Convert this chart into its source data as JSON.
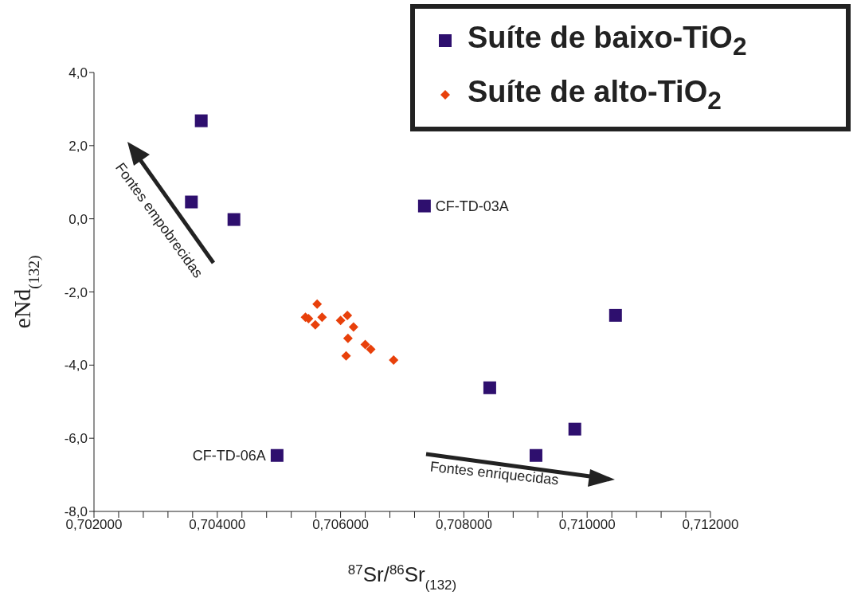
{
  "chart_data": {
    "type": "scatter",
    "xlabel": "$^{87}$Sr/$^{86}$Sr$_{(132)}$",
    "ylabel": "eNd$_{(132)}$",
    "legend": "top right",
    "grid": false,
    "xlim": [
      0.702,
      0.712
    ],
    "ylim": [
      -8,
      4
    ],
    "xticks": [
      {
        "value": 0.702,
        "label": "0,702000"
      },
      {
        "value": 0.7024,
        "label": null
      },
      {
        "value": 0.7028,
        "label": null
      },
      {
        "value": 0.7032,
        "label": null
      },
      {
        "value": 0.7036,
        "label": null
      },
      {
        "value": 0.704,
        "label": "0,704000"
      },
      {
        "value": 0.7044,
        "label": null
      },
      {
        "value": 0.7048,
        "label": null
      },
      {
        "value": 0.7052,
        "label": null
      },
      {
        "value": 0.7056,
        "label": null
      },
      {
        "value": 0.706,
        "label": "0,706000"
      },
      {
        "value": 0.7064,
        "label": null
      },
      {
        "value": 0.7068,
        "label": null
      },
      {
        "value": 0.7072,
        "label": null
      },
      {
        "value": 0.7076,
        "label": null
      },
      {
        "value": 0.708,
        "label": "0,708000"
      },
      {
        "value": 0.7084,
        "label": null
      },
      {
        "value": 0.7088,
        "label": null
      },
      {
        "value": 0.7092,
        "label": null
      },
      {
        "value": 0.7096,
        "label": null
      },
      {
        "value": 0.71,
        "label": "0,710000"
      },
      {
        "value": 0.7104,
        "label": null
      },
      {
        "value": 0.7108,
        "label": null
      },
      {
        "value": 0.7112,
        "label": null
      },
      {
        "value": 0.7116,
        "label": null
      },
      {
        "value": 0.712,
        "label": "0,712000"
      }
    ],
    "yticks": [
      {
        "value": -8,
        "label": "-8,0"
      },
      {
        "value": -6,
        "label": "-6,0"
      },
      {
        "value": -4,
        "label": "-4,0"
      },
      {
        "value": -2,
        "label": "-2,0"
      },
      {
        "value": 0,
        "label": "0,0"
      },
      {
        "value": 2,
        "label": "2,0"
      },
      {
        "value": 4,
        "label": "4,0"
      }
    ],
    "series": [
      {
        "name": "Suíte de baixo-TiO$_{2}$",
        "color": "#2e0f6e",
        "marker": "square",
        "x": [
          0.70374,
          0.70358,
          0.70427,
          0.70736,
          0.71046,
          0.70842,
          0.7098,
          0.70917,
          0.70497
        ],
        "values": [
          2.68,
          0.46,
          -0.02,
          0.35,
          -2.64,
          -4.62,
          -5.75,
          -6.47,
          -6.47
        ]
      },
      {
        "name": "Suíte de alto-TiO$_{2}$",
        "color": "#e8400a",
        "marker": "diamond",
        "x": [
          0.70562,
          0.70543,
          0.70548,
          0.7057,
          0.70559,
          0.70611,
          0.706,
          0.70621,
          0.70612,
          0.7064,
          0.70649,
          0.70609,
          0.70686
        ],
        "values": [
          -2.33,
          -2.69,
          -2.73,
          -2.69,
          -2.9,
          -2.64,
          -2.78,
          -2.96,
          -3.27,
          -3.44,
          -3.57,
          -3.75,
          -3.86
        ]
      }
    ],
    "annotations": [
      {
        "text": "CF-TD-03A",
        "x": 0.70736,
        "y": 0.35
      },
      {
        "text": "CF-TD-06A",
        "x": 0.70497,
        "y": -6.47
      },
      "Fontes empobrecidas",
      "Fontes enriquecidas"
    ]
  }
}
